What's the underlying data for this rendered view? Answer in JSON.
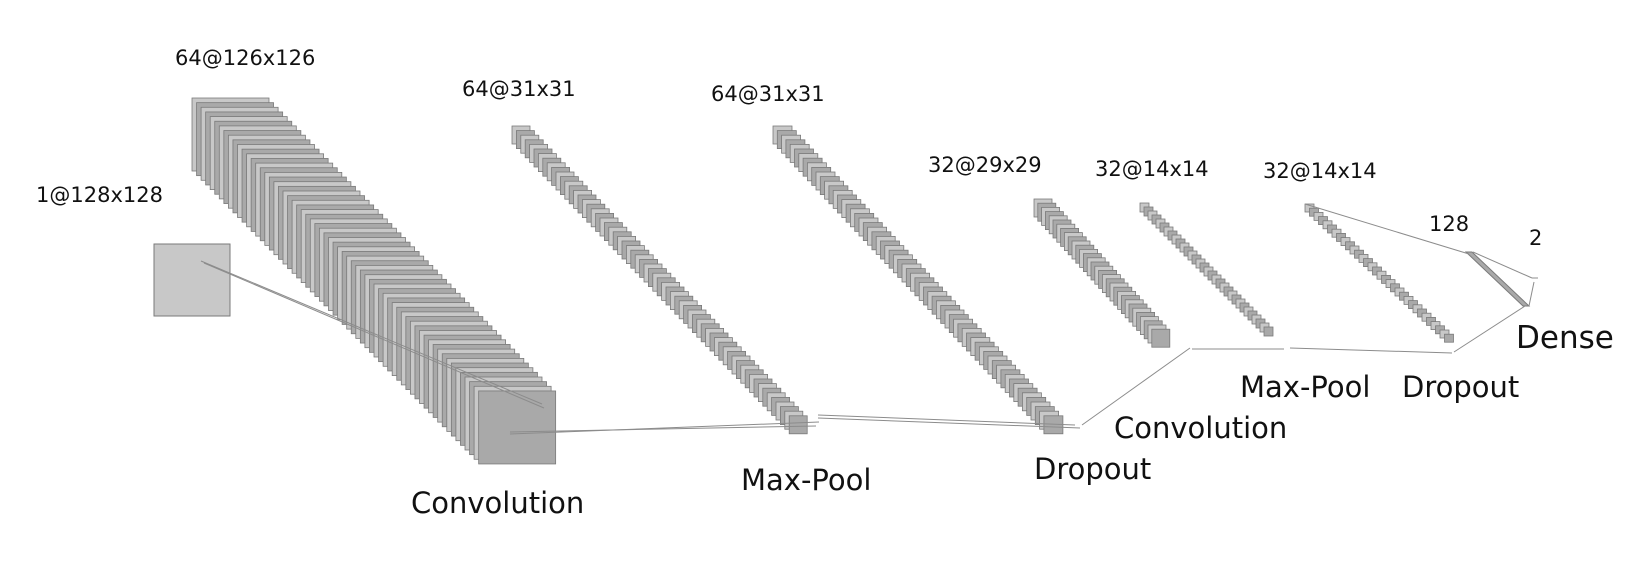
{
  "layers": [
    {
      "id": "input",
      "label": "1@128x128"
    },
    {
      "id": "conv1",
      "label": "64@126x126"
    },
    {
      "id": "pool1",
      "label": "64@31x31"
    },
    {
      "id": "drop1",
      "label": "64@31x31"
    },
    {
      "id": "conv2",
      "label": "32@29x29"
    },
    {
      "id": "pool2",
      "label": "32@14x14"
    },
    {
      "id": "drop2",
      "label": "32@14x14"
    },
    {
      "id": "dense1",
      "label": "128"
    },
    {
      "id": "dense2",
      "label": "2"
    }
  ],
  "operations": {
    "conv1": "Convolution",
    "pool1": "Max-Pool",
    "drop1": "Dropout",
    "conv2": "Convolution",
    "pool2": "Max-Pool",
    "drop2": "Dropout",
    "dense": "Dense"
  },
  "colors": {
    "fill": "#c8c8c8",
    "fill_dark": "#a9a9a9",
    "stroke": "#7a7a7a",
    "line": "#8c8c8c"
  }
}
